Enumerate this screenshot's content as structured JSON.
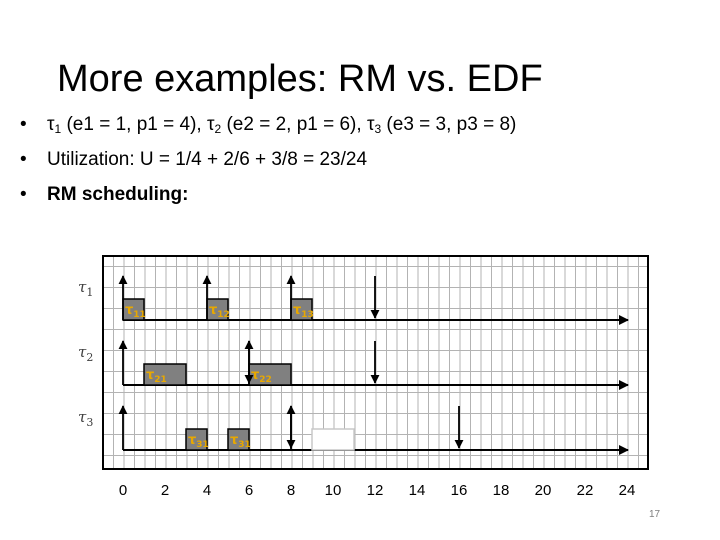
{
  "slide": {
    "title": "More examples: RM vs. EDF",
    "bullets": {
      "task_line": {
        "tau1": "τ",
        "s1": "1",
        "p1": " (e1 = 1, p1 = 4), ",
        "tau2": "τ",
        "s2": "2",
        "p2": " (e2 = 2, p1 = 6), ",
        "tau3": "τ",
        "s3": "3",
        "p3": " (e3 = 3, p3 = 8)"
      },
      "utilization": "Utilization: U = 1/4 + 2/6 + 3/8 = 23/24",
      "rm_heading": "RM scheduling:"
    },
    "page_number": "17"
  },
  "diagram": {
    "x_ticks": [
      "0",
      "2",
      "4",
      "6",
      "8",
      "10",
      "12",
      "14",
      "16",
      "18",
      "20",
      "22",
      "24"
    ],
    "colors": {
      "job_fill": "#808080",
      "job_label": "#e8a800",
      "grid": "#b3b3b3",
      "frame": "#000000",
      "task_label": "#404040"
    },
    "tasks": [
      {
        "label": "τ",
        "sub": "1",
        "releases": [
          0,
          4,
          8
        ],
        "deadlines": [
          12
        ],
        "jobs": [
          {
            "label": "τ",
            "sub": "11",
            "start": 0,
            "end": 1
          },
          {
            "label": "τ",
            "sub": "12",
            "start": 4,
            "end": 5
          },
          {
            "label": "τ",
            "sub": "13",
            "start": 8,
            "end": 9
          }
        ],
        "gaps": []
      },
      {
        "label": "τ",
        "sub": "2",
        "releases": [
          0,
          6
        ],
        "deadlines": [
          6,
          12
        ],
        "jobs": [
          {
            "label": "τ",
            "sub": "21",
            "start": 1,
            "end": 3
          },
          {
            "label": "τ",
            "sub": "22",
            "start": 6,
            "end": 8
          }
        ],
        "gaps": []
      },
      {
        "label": "τ",
        "sub": "3",
        "releases": [
          0,
          8
        ],
        "deadlines": [
          8,
          16
        ],
        "jobs": [
          {
            "label": "τ",
            "sub": "31",
            "start": 3,
            "end": 4
          },
          {
            "label": "τ",
            "sub": "31",
            "start": 5,
            "end": 6
          }
        ],
        "gaps": [
          {
            "start": 9,
            "end": 11
          }
        ]
      }
    ]
  }
}
